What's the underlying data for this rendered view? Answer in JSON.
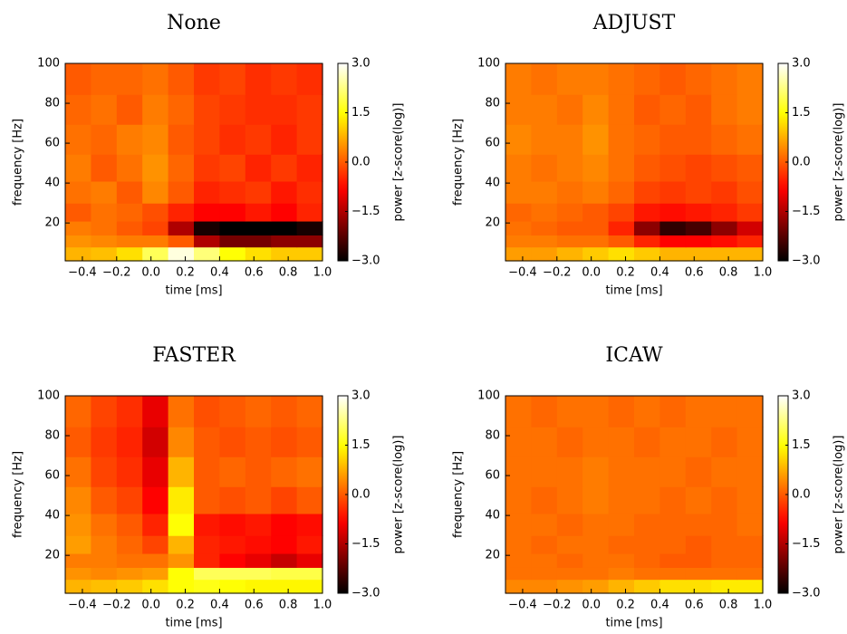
{
  "chart_data": [
    {
      "type": "heatmap",
      "title": "None",
      "xlabel": "time [ms]",
      "ylabel": "frequency [Hz]",
      "colorbar_label": "power [z-score(log)]",
      "cmap": "hot",
      "clim": [
        -3,
        3
      ],
      "xlim": [
        -0.5,
        1.0
      ],
      "ylim": [
        1,
        100
      ],
      "xticks": [
        {
          "value": -0.4,
          "label": "−0.4"
        },
        {
          "value": -0.2,
          "label": "−0.2"
        },
        {
          "value": 0,
          "label": "0.0"
        },
        0.2,
        0.4,
        0.6,
        0.8,
        {
          "value": 1,
          "label": "1.0"
        }
      ],
      "yticks": [
        20,
        40,
        60,
        80,
        100
      ],
      "colorbar_ticks": [
        {
          "value": 3,
          "label": "3.0"
        },
        1.5,
        {
          "value": 0,
          "label": "0.0"
        },
        {
          "value": -1.5,
          "label": "−1.5"
        },
        {
          "value": -3,
          "label": "−3.0"
        }
      ],
      "x": [
        -0.425,
        -0.275,
        -0.125,
        0.025,
        0.175,
        0.325,
        0.475,
        0.625,
        0.775,
        0.925
      ],
      "y": [
        5,
        11,
        17,
        25,
        35,
        47,
        62,
        77,
        92
      ],
      "z": [
        [
          0.8,
          0.9,
          1.2,
          2.0,
          2.8,
          2.2,
          1.5,
          1.2,
          1.0,
          1.0
        ],
        [
          0.5,
          0.4,
          0.3,
          0.3,
          0.0,
          -1.5,
          -2.0,
          -2.0,
          -1.8,
          -1.8
        ],
        [
          0.3,
          0.2,
          0.0,
          -0.2,
          -1.5,
          -2.8,
          -3.0,
          -3.0,
          -3.0,
          -2.8
        ],
        [
          0.0,
          0.2,
          0.1,
          -0.1,
          -0.5,
          -0.8,
          -0.8,
          -0.6,
          -0.8,
          -0.5
        ],
        [
          0.2,
          0.3,
          0.0,
          0.4,
          0.0,
          -0.5,
          -0.4,
          -0.3,
          -0.6,
          -0.4
        ],
        [
          0.3,
          0.0,
          0.2,
          0.5,
          0.1,
          -0.3,
          -0.2,
          -0.5,
          -0.3,
          -0.5
        ],
        [
          0.2,
          0.1,
          0.3,
          0.4,
          0.0,
          -0.2,
          -0.4,
          -0.3,
          -0.5,
          -0.3
        ],
        [
          0.1,
          0.2,
          0.0,
          0.3,
          0.1,
          -0.2,
          -0.3,
          -0.4,
          -0.4,
          -0.3
        ],
        [
          0.0,
          0.1,
          0.1,
          0.2,
          0.0,
          -0.3,
          -0.2,
          -0.4,
          -0.3,
          -0.4
        ]
      ]
    },
    {
      "type": "heatmap",
      "title": "ADJUST",
      "xlabel": "time [ms]",
      "ylabel": "frequency [Hz]",
      "colorbar_label": "power [z-score(log)]",
      "cmap": "hot",
      "clim": [
        -3,
        3
      ],
      "xlim": [
        -0.5,
        1.0
      ],
      "ylim": [
        1,
        100
      ],
      "xticks": [
        {
          "value": -0.4,
          "label": "−0.4"
        },
        {
          "value": -0.2,
          "label": "−0.2"
        },
        {
          "value": 0,
          "label": "0.0"
        },
        0.2,
        0.4,
        0.6,
        0.8,
        {
          "value": 1,
          "label": "1.0"
        }
      ],
      "yticks": [
        20,
        40,
        60,
        80,
        100
      ],
      "colorbar_ticks": [
        {
          "value": 3,
          "label": "3.0"
        },
        1.5,
        {
          "value": 0,
          "label": "0.0"
        },
        {
          "value": -1.5,
          "label": "−1.5"
        },
        {
          "value": -3,
          "label": "−3.0"
        }
      ],
      "x": [
        -0.425,
        -0.275,
        -0.125,
        0.025,
        0.175,
        0.325,
        0.475,
        0.625,
        0.775,
        0.925
      ],
      "y": [
        5,
        11,
        17,
        25,
        35,
        47,
        62,
        77,
        92
      ],
      "z": [
        [
          0.6,
          0.6,
          0.8,
          1.0,
          1.2,
          1.0,
          0.8,
          0.8,
          0.8,
          0.8
        ],
        [
          0.3,
          0.3,
          0.2,
          0.2,
          0.0,
          -0.5,
          -0.8,
          -0.8,
          -0.7,
          -0.5
        ],
        [
          0.2,
          0.1,
          0.0,
          0.0,
          -0.5,
          -1.8,
          -2.6,
          -2.4,
          -1.8,
          -1.2
        ],
        [
          0.1,
          0.2,
          0.1,
          0.0,
          -0.2,
          -0.6,
          -0.7,
          -0.6,
          -0.5,
          -0.3
        ],
        [
          0.3,
          0.3,
          0.2,
          0.3,
          0.1,
          -0.2,
          -0.3,
          -0.2,
          -0.3,
          -0.1
        ],
        [
          0.3,
          0.2,
          0.3,
          0.4,
          0.2,
          0.0,
          -0.1,
          -0.2,
          -0.1,
          0.0
        ],
        [
          0.4,
          0.3,
          0.3,
          0.5,
          0.2,
          0.1,
          0.0,
          0.0,
          0.1,
          0.2
        ],
        [
          0.3,
          0.3,
          0.2,
          0.4,
          0.2,
          0.0,
          0.1,
          0.0,
          0.2,
          0.3
        ],
        [
          0.3,
          0.2,
          0.3,
          0.3,
          0.2,
          0.1,
          0.0,
          0.1,
          0.2,
          0.3
        ]
      ]
    },
    {
      "type": "heatmap",
      "title": "FASTER",
      "xlabel": "time [ms]",
      "ylabel": "frequency [Hz]",
      "colorbar_label": "power [z-score(log)]",
      "cmap": "hot",
      "clim": [
        -3,
        3
      ],
      "xlim": [
        -0.5,
        1.0
      ],
      "ylim": [
        1,
        100
      ],
      "xticks": [
        {
          "value": -0.4,
          "label": "−0.4"
        },
        {
          "value": -0.2,
          "label": "−0.2"
        },
        {
          "value": 0,
          "label": "0.0"
        },
        0.2,
        0.4,
        0.6,
        0.8,
        {
          "value": 1,
          "label": "1.0"
        }
      ],
      "yticks": [
        20,
        40,
        60,
        80,
        100
      ],
      "colorbar_ticks": [
        {
          "value": 3,
          "label": "3.0"
        },
        1.5,
        {
          "value": 0,
          "label": "0.0"
        },
        {
          "value": -1.5,
          "label": "−1.5"
        },
        {
          "value": -3,
          "label": "−3.0"
        }
      ],
      "x": [
        -0.425,
        -0.275,
        -0.125,
        0.025,
        0.175,
        0.325,
        0.475,
        0.625,
        0.775,
        0.925
      ],
      "y": [
        5,
        11,
        17,
        25,
        35,
        47,
        62,
        77,
        92
      ],
      "z": [
        [
          0.8,
          0.9,
          1.0,
          1.2,
          1.5,
          1.6,
          1.5,
          1.4,
          1.4,
          1.4
        ],
        [
          0.5,
          0.4,
          0.5,
          0.6,
          1.5,
          2.0,
          2.0,
          2.0,
          1.9,
          1.9
        ],
        [
          0.3,
          0.3,
          0.2,
          0.2,
          0.5,
          -0.5,
          -0.8,
          -1.0,
          -1.3,
          -1.0
        ],
        [
          0.6,
          0.3,
          0.1,
          -0.2,
          0.8,
          -0.5,
          -0.6,
          -0.7,
          -0.8,
          -0.6
        ],
        [
          0.5,
          0.2,
          0.0,
          -0.5,
          1.5,
          -0.6,
          -0.7,
          -0.6,
          -0.8,
          -0.7
        ],
        [
          0.4,
          0.0,
          -0.2,
          -0.8,
          1.3,
          0.0,
          -0.1,
          0.0,
          -0.2,
          0.0
        ],
        [
          0.2,
          -0.2,
          -0.4,
          -1.0,
          0.8,
          0.0,
          0.1,
          0.0,
          0.1,
          0.2
        ],
        [
          0.0,
          -0.3,
          -0.5,
          -1.2,
          0.4,
          0.0,
          -0.1,
          0.0,
          -0.1,
          0.0
        ],
        [
          0.1,
          -0.2,
          -0.4,
          -1.0,
          0.2,
          -0.1,
          0.0,
          0.1,
          0.0,
          0.1
        ]
      ]
    },
    {
      "type": "heatmap",
      "title": "ICAW",
      "xlabel": "time [ms]",
      "ylabel": "frequency [Hz]",
      "colorbar_label": "power [z-score(log)]",
      "cmap": "hot",
      "clim": [
        -3,
        3
      ],
      "xlim": [
        -0.5,
        1.0
      ],
      "ylim": [
        1,
        100
      ],
      "xticks": [
        {
          "value": -0.4,
          "label": "−0.4"
        },
        {
          "value": -0.2,
          "label": "−0.2"
        },
        {
          "value": 0,
          "label": "0.0"
        },
        0.2,
        0.4,
        0.6,
        0.8,
        {
          "value": 1,
          "label": "1.0"
        }
      ],
      "yticks": [
        20,
        40,
        60,
        80,
        100
      ],
      "colorbar_ticks": [
        {
          "value": 3,
          "label": "3.0"
        },
        1.5,
        {
          "value": 0,
          "label": "0.0"
        },
        {
          "value": -1.5,
          "label": "−1.5"
        },
        {
          "value": -3,
          "label": "−3.0"
        }
      ],
      "x": [
        -0.425,
        -0.275,
        -0.125,
        0.025,
        0.175,
        0.325,
        0.475,
        0.625,
        0.775,
        0.925
      ],
      "y": [
        5,
        11,
        17,
        25,
        35,
        47,
        62,
        77,
        92
      ],
      "z": [
        [
          0.4,
          0.4,
          0.5,
          0.6,
          0.8,
          1.0,
          1.2,
          1.2,
          1.3,
          1.3
        ],
        [
          0.2,
          0.2,
          0.2,
          0.2,
          0.3,
          0.2,
          0.2,
          0.2,
          0.2,
          0.2
        ],
        [
          0.2,
          0.2,
          0.1,
          0.2,
          0.2,
          0.1,
          0.0,
          0.0,
          0.1,
          0.1
        ],
        [
          0.2,
          0.1,
          0.2,
          0.2,
          0.1,
          0.1,
          0.1,
          0.0,
          0.1,
          0.1
        ],
        [
          0.2,
          0.2,
          0.1,
          0.2,
          0.2,
          0.1,
          0.1,
          0.1,
          0.1,
          0.2
        ],
        [
          0.2,
          0.1,
          0.2,
          0.3,
          0.2,
          0.2,
          0.1,
          0.2,
          0.1,
          0.2
        ],
        [
          0.2,
          0.2,
          0.2,
          0.3,
          0.2,
          0.2,
          0.2,
          0.1,
          0.2,
          0.2
        ],
        [
          0.2,
          0.2,
          0.1,
          0.2,
          0.2,
          0.1,
          0.2,
          0.2,
          0.1,
          0.2
        ],
        [
          0.2,
          0.1,
          0.2,
          0.2,
          0.1,
          0.2,
          0.1,
          0.2,
          0.2,
          0.2
        ]
      ]
    }
  ]
}
